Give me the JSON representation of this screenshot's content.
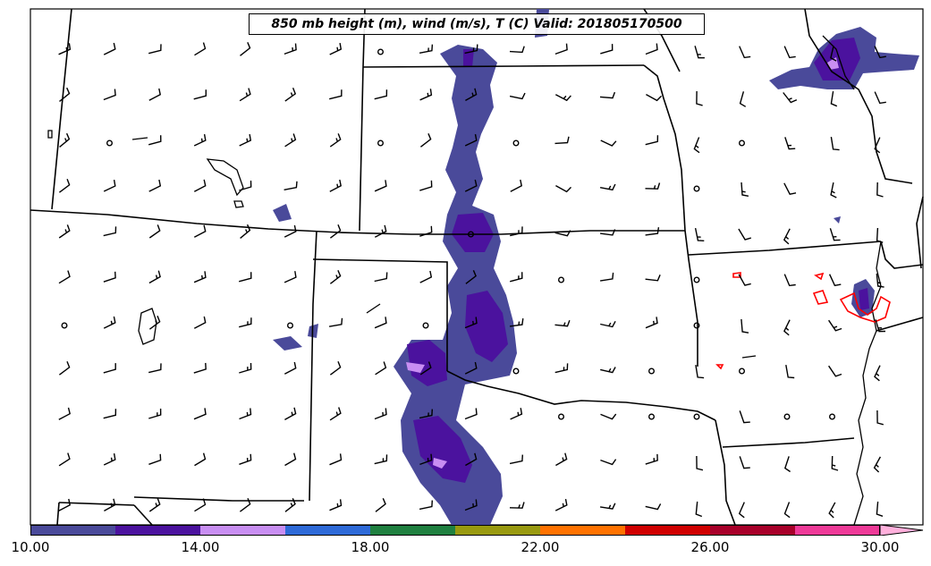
{
  "title": "850 mb height (m), wind (m/s), T (C) Valid: 201805170500",
  "colorbar": {
    "colors": [
      "#4a4a9a",
      "#4b129e",
      "#c88ef2",
      "#2e6ad8",
      "#1f8040",
      "#999a10",
      "#ff7200",
      "#d00000",
      "#a8002a",
      "#ee3a98"
    ],
    "extend_color": "#ffb0dc",
    "ticks": [
      "10.00",
      "14.00",
      "18.00",
      "22.00",
      "26.00",
      "30.00"
    ]
  },
  "legend_colors": {
    "land_border": "#000000",
    "temperature_contour": "#ff0000",
    "shading_light": "#4a4a9a",
    "shading_mid": "#4b129e",
    "shading_high": "#c88ef2"
  }
}
